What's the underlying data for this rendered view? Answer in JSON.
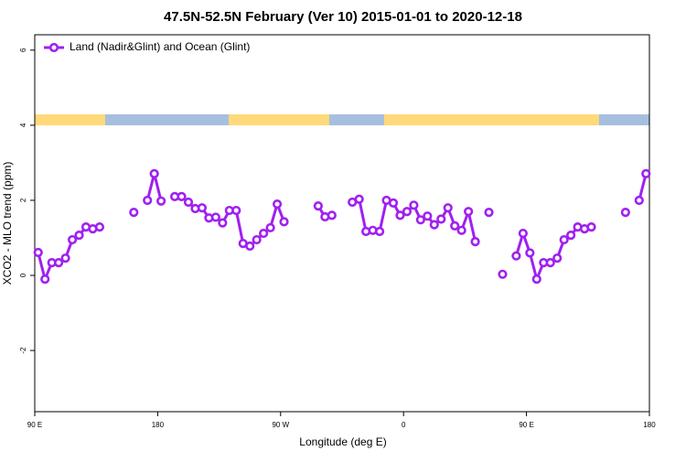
{
  "chart_data": {
    "type": "line",
    "title": "47.5N-52.5N February (Ver 10)   2015-01-01 to 2020-12-18",
    "xlabel": "Longitude (deg E)",
    "ylabel": "XCO2 - MLO trend (ppm)",
    "x": [
      92.5,
      97.5,
      102.5,
      107.5,
      112.5,
      117.5,
      122.5,
      127.5,
      132.5,
      137.5,
      142.5,
      147.5,
      152.5,
      157.5,
      162.5,
      167.5,
      172.5,
      177.5,
      182.5,
      187.5,
      192.5,
      197.5,
      202.5,
      207.5,
      212.5,
      217.5,
      222.5,
      227.5,
      232.5,
      237.5,
      242.5,
      247.5,
      252.5,
      257.5,
      262.5,
      267.5,
      272.5,
      277.5,
      282.5,
      287.5,
      292.5,
      297.5,
      302.5,
      307.5,
      312.5,
      317.5,
      322.5,
      327.5,
      332.5,
      337.5,
      342.5,
      347.5,
      352.5,
      357.5,
      362.5,
      367.5,
      372.5,
      377.5,
      382.5,
      387.5,
      392.5,
      397.5,
      402.5,
      407.5,
      412.5,
      417.5,
      422.5,
      427.5,
      432.5,
      437.5,
      442.5,
      447.5,
      452.5,
      457.5,
      462.5,
      467.5,
      472.5,
      477.5,
      482.5,
      487.5,
      492.5,
      497.5,
      502.5,
      507.5,
      512.5,
      517.5,
      522.5,
      527.5,
      532.5,
      537.5
    ],
    "series": [
      {
        "name": "Land (Nadir&Glint) and Ocean (Glint)",
        "color": "#a020f0",
        "values": [
          0.61,
          -0.1,
          0.34,
          0.34,
          0.46,
          0.95,
          1.07,
          1.29,
          1.24,
          1.29,
          null,
          null,
          null,
          null,
          1.68,
          null,
          2.0,
          2.71,
          1.98,
          null,
          2.1,
          2.1,
          1.95,
          1.78,
          1.8,
          1.53,
          1.55,
          1.4,
          1.73,
          1.73,
          0.85,
          0.78,
          0.95,
          1.12,
          1.27,
          1.9,
          1.43,
          null,
          null,
          null,
          null,
          1.85,
          1.56,
          1.6,
          null,
          null,
          1.95,
          2.03,
          1.17,
          1.2,
          1.17,
          2.0,
          1.93,
          1.6,
          1.7,
          1.87,
          1.48,
          1.58,
          1.35,
          1.5,
          1.8,
          1.32,
          1.2,
          1.7,
          0.9,
          null,
          1.68,
          null,
          0.03,
          null,
          0.52,
          1.12,
          0.6,
          -0.1,
          0.34,
          0.34,
          0.46,
          0.95,
          1.07,
          1.29,
          1.24,
          1.29,
          null,
          null,
          null,
          null,
          1.68,
          null,
          2.0,
          2.71
        ]
      }
    ],
    "xlim": [
      90,
      540
    ],
    "xticks": [
      {
        "value": 90,
        "label": "90 E"
      },
      180,
      {
        "value": 270,
        "label": "90 W"
      },
      {
        "value": 360,
        "label": "0"
      },
      {
        "value": 450,
        "label": "90 E"
      },
      {
        "value": 540,
        "label": "180"
      }
    ],
    "ylim": [
      -3.63,
      6.41
    ],
    "yticks": [
      -2,
      0,
      2,
      4,
      6
    ],
    "legend": "top-left"
  }
}
